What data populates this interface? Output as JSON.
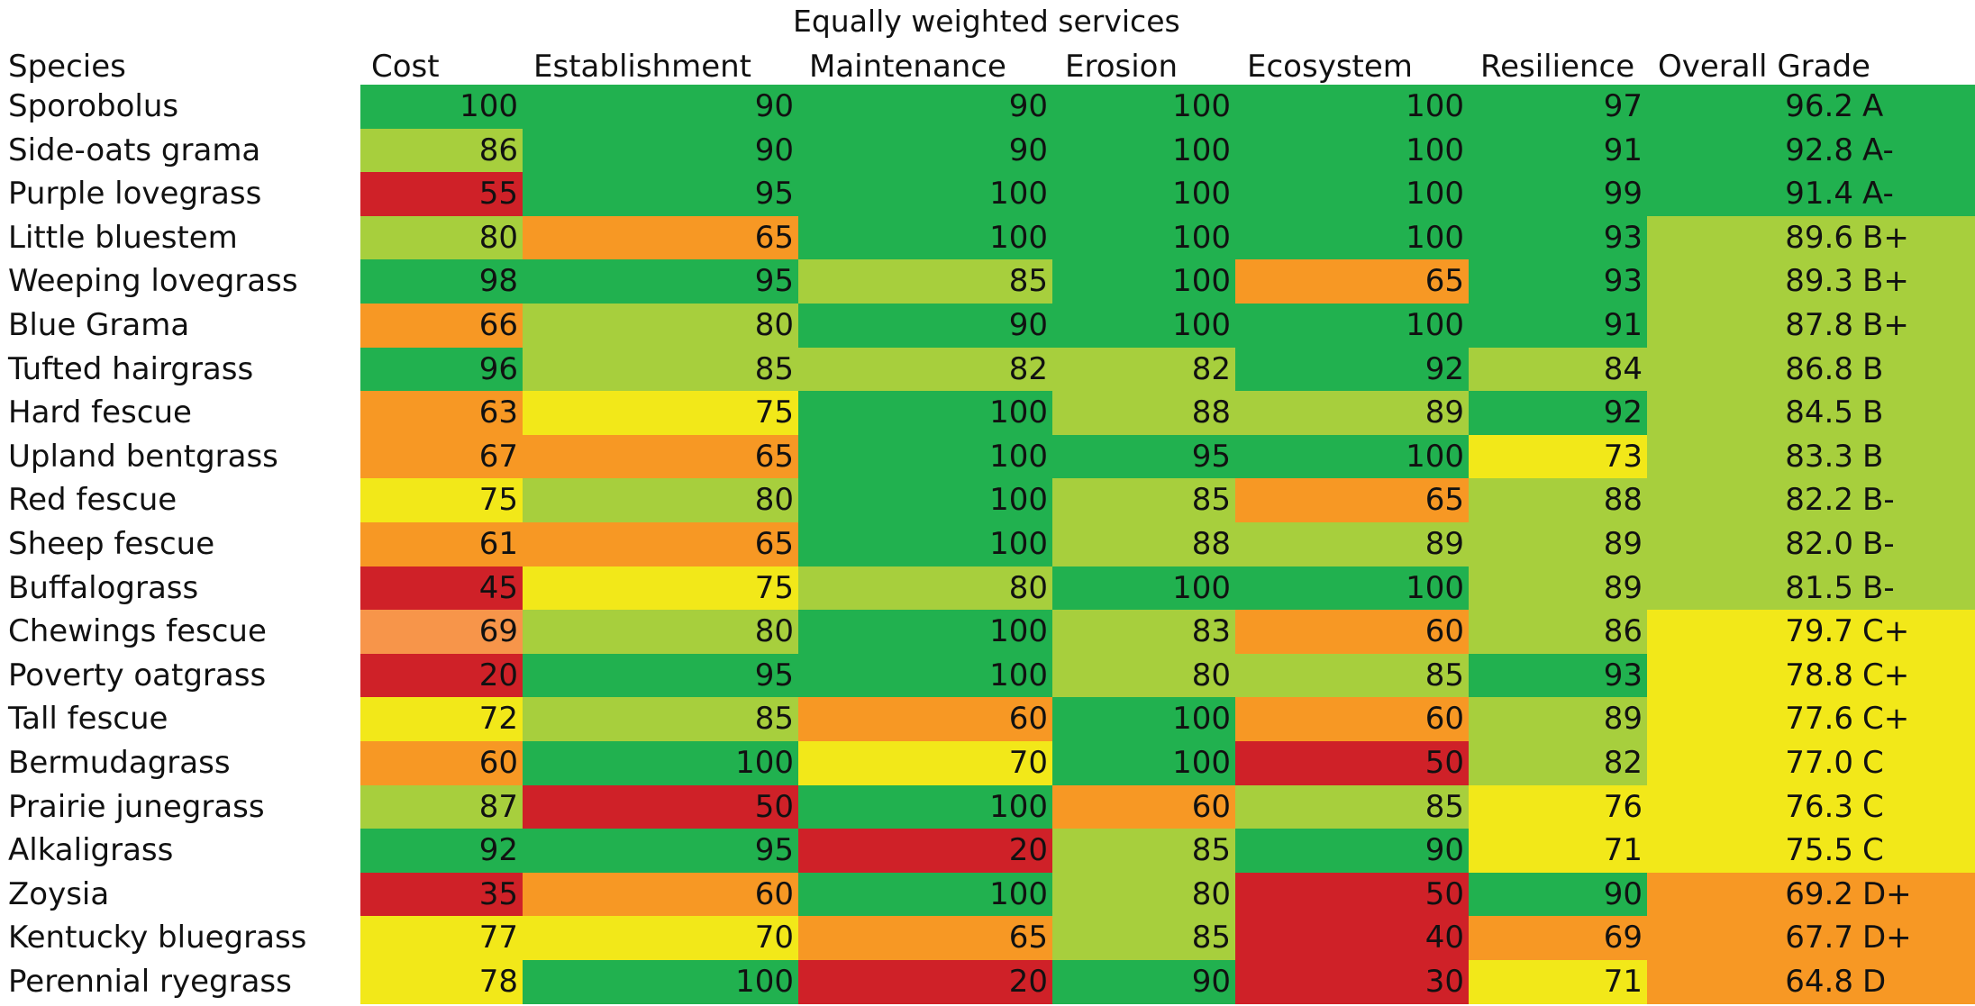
{
  "chart_data": {
    "type": "table",
    "title": "Equally weighted services",
    "columns": [
      "Species",
      "Cost",
      "Establishment",
      "Maintenance",
      "Erosion",
      "Ecosystem",
      "Resilience",
      "Overall Grade"
    ],
    "rows": [
      {
        "species": "Sporobolus",
        "values": [
          100,
          90,
          90,
          100,
          100,
          97
        ],
        "overall": "96.2",
        "grade": "A"
      },
      {
        "species": "Side-oats grama",
        "values": [
          86,
          90,
          90,
          100,
          100,
          91
        ],
        "overall": "92.8",
        "grade": "A-"
      },
      {
        "species": "Purple lovegrass",
        "values": [
          55,
          95,
          100,
          100,
          100,
          99
        ],
        "overall": "91.4",
        "grade": "A-"
      },
      {
        "species": "Little bluestem",
        "values": [
          80,
          65,
          100,
          100,
          100,
          93
        ],
        "overall": "89.6",
        "grade": "B+"
      },
      {
        "species": "Weeping lovegrass",
        "values": [
          98,
          95,
          85,
          100,
          65,
          93
        ],
        "overall": "89.3",
        "grade": "B+"
      },
      {
        "species": "Blue Grama",
        "values": [
          66,
          80,
          90,
          100,
          100,
          91
        ],
        "overall": "87.8",
        "grade": "B+"
      },
      {
        "species": "Tufted hairgrass",
        "values": [
          96,
          85,
          82,
          82,
          92,
          84
        ],
        "overall": "86.8",
        "grade": "B"
      },
      {
        "species": "Hard fescue",
        "values": [
          63,
          75,
          100,
          88,
          89,
          92
        ],
        "overall": "84.5",
        "grade": "B"
      },
      {
        "species": "Upland bentgrass",
        "values": [
          67,
          65,
          100,
          95,
          100,
          73
        ],
        "overall": "83.3",
        "grade": "B"
      },
      {
        "species": "Red fescue",
        "values": [
          75,
          80,
          100,
          85,
          65,
          88
        ],
        "overall": "82.2",
        "grade": "B-"
      },
      {
        "species": "Sheep fescue",
        "values": [
          61,
          65,
          100,
          88,
          89,
          89
        ],
        "overall": "82.0",
        "grade": "B-"
      },
      {
        "species": "Buffalograss",
        "values": [
          45,
          75,
          80,
          100,
          100,
          89
        ],
        "overall": "81.5",
        "grade": "B-"
      },
      {
        "species": "Chewings fescue",
        "values": [
          69,
          80,
          100,
          83,
          60,
          86
        ],
        "overall": "79.7",
        "grade": "C+"
      },
      {
        "species": "Poverty oatgrass",
        "values": [
          20,
          95,
          100,
          80,
          85,
          93
        ],
        "overall": "78.8",
        "grade": "C+"
      },
      {
        "species": "Tall fescue",
        "values": [
          72,
          85,
          60,
          100,
          60,
          89
        ],
        "overall": "77.6",
        "grade": "C+"
      },
      {
        "species": "Bermudagrass",
        "values": [
          60,
          100,
          70,
          100,
          50,
          82
        ],
        "overall": "77.0",
        "grade": "C"
      },
      {
        "species": "Prairie junegrass",
        "values": [
          87,
          50,
          100,
          60,
          85,
          76
        ],
        "overall": "76.3",
        "grade": "C"
      },
      {
        "species": "Alkaligrass",
        "values": [
          92,
          95,
          20,
          85,
          90,
          71
        ],
        "overall": "75.5",
        "grade": "C"
      },
      {
        "species": "Zoysia",
        "values": [
          35,
          60,
          100,
          80,
          50,
          90
        ],
        "overall": "69.2",
        "grade": "D+"
      },
      {
        "species": "Kentucky bluegrass",
        "values": [
          77,
          70,
          65,
          85,
          40,
          69
        ],
        "overall": "67.7",
        "grade": "D+"
      },
      {
        "species": "Perennial ryegrass",
        "values": [
          78,
          100,
          20,
          90,
          30,
          71
        ],
        "overall": "64.8",
        "grade": "D"
      }
    ]
  },
  "colors": {
    "dark_green": "#21b14f",
    "light_green": "#a7cf3d",
    "yellow": "#f2e819",
    "orange": "#f79824",
    "light_orange": "#f7954a",
    "red": "#cf2128"
  }
}
